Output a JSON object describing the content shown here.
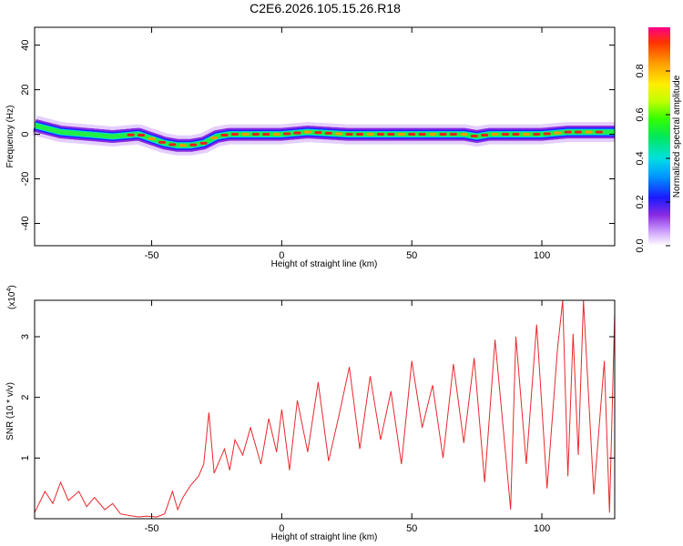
{
  "title": "C2E6.2026.105.15.26.R18",
  "chart_data": [
    {
      "type": "heatmap",
      "xlabel": "Height of straight line (km)",
      "ylabel": "Frequency (Hz)",
      "xlim": [
        -95,
        128
      ],
      "ylim": [
        -50,
        48
      ],
      "xticks": [
        -50,
        0,
        50,
        100
      ],
      "xtick_labels": [
        "-50",
        "0",
        "50",
        "100"
      ],
      "yticks": [
        -40,
        -20,
        0,
        20,
        40
      ],
      "ytick_labels": [
        "-40",
        "-20",
        "0",
        "20",
        "40"
      ],
      "ridge": {
        "x": [
          -95,
          -85,
          -75,
          -65,
          -55,
          -50,
          -45,
          -40,
          -35,
          -30,
          -25,
          -20,
          -10,
          0,
          10,
          25,
          40,
          55,
          70,
          75,
          80,
          90,
          100,
          110,
          120,
          128
        ],
        "frequency": [
          4,
          1,
          0,
          -1,
          0,
          -2,
          -4,
          -5,
          -5,
          -4,
          -1,
          0,
          0,
          0,
          1,
          0,
          0,
          0,
          0,
          -1,
          0,
          0,
          0,
          1,
          1,
          1
        ]
      },
      "colorbar": {
        "label": "Normalized spectral amplitude",
        "range": [
          0,
          1
        ],
        "ticks": [
          0.0,
          0.2,
          0.4,
          0.6,
          0.8
        ],
        "tick_labels": [
          "0.0",
          "0.2",
          "0.4",
          "0.6",
          "0.8"
        ]
      },
      "grid": false
    },
    {
      "type": "line",
      "xlabel": "Height of straight line (km)",
      "ylabel": "SNR (10 * v/v)",
      "scale_label": "(x10",
      "scale_exponent": "4",
      "xlim": [
        -95,
        128
      ],
      "ylim": [
        0,
        3.6
      ],
      "xticks": [
        -50,
        0,
        50,
        100
      ],
      "xtick_labels": [
        "-50",
        "0",
        "50",
        "100"
      ],
      "yticks": [
        1,
        2,
        3
      ],
      "ytick_labels": [
        "1",
        "2",
        "3"
      ],
      "color": "#e8282c",
      "grid": false,
      "series": [
        {
          "x": [
            -95,
            -91,
            -88,
            -85,
            -82,
            -78,
            -75,
            -72,
            -68,
            -65,
            -62,
            -58,
            -55,
            -52,
            -48,
            -45,
            -42,
            -40,
            -38,
            -35,
            -32,
            -30,
            -28,
            -26,
            -24,
            -22,
            -20,
            -18,
            -15,
            -12,
            -10,
            -8,
            -5,
            -2,
            0,
            3,
            6,
            10,
            14,
            18,
            22,
            26,
            30,
            34,
            38,
            42,
            46,
            50,
            54,
            58,
            62,
            66,
            70,
            74,
            78,
            82,
            86,
            88,
            90,
            94,
            98,
            102,
            106,
            108,
            110,
            112,
            114,
            116,
            120,
            124,
            126,
            128
          ],
          "values": [
            0.1,
            0.45,
            0.25,
            0.6,
            0.3,
            0.45,
            0.2,
            0.35,
            0.15,
            0.25,
            0.08,
            0.05,
            0.03,
            0.04,
            0.03,
            0.08,
            0.45,
            0.15,
            0.35,
            0.55,
            0.7,
            0.9,
            1.75,
            0.75,
            0.95,
            1.15,
            0.8,
            1.3,
            1.05,
            1.5,
            1.2,
            0.9,
            1.65,
            1.1,
            1.8,
            0.8,
            1.95,
            1.1,
            2.25,
            0.95,
            1.7,
            2.5,
            1.15,
            2.35,
            1.3,
            2.1,
            0.9,
            2.6,
            1.5,
            2.2,
            1.0,
            2.55,
            1.25,
            2.65,
            0.6,
            2.95,
            1.1,
            0.15,
            3.0,
            0.9,
            3.2,
            0.5,
            2.8,
            3.6,
            0.7,
            3.05,
            1.05,
            3.6,
            0.4,
            2.6,
            0.1,
            3.4
          ]
        }
      ]
    }
  ]
}
